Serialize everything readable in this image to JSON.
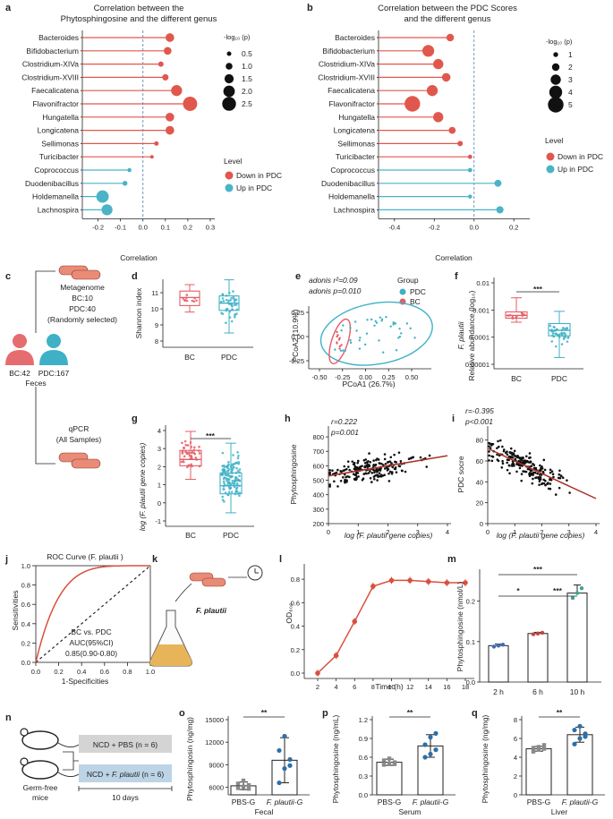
{
  "panels": {
    "a": {
      "label": "a",
      "title_line1": "Correlation between the",
      "title_line2": "Phytosphingosine and the different genus",
      "xlabel": "Correlation",
      "xticks": [
        "-0.2",
        "-0.1",
        "0.0",
        "0.1",
        "0.2",
        "0.3"
      ],
      "size_legend_title": "-log₁₀ (p)",
      "size_legend": [
        "0.5",
        "1.0",
        "1.5",
        "2.0",
        "2.5"
      ],
      "level_title": "Level",
      "level_down": "Down in PDC",
      "level_up": "Up in PDC"
    },
    "b": {
      "label": "b",
      "title_line1": "Correlation between the PDC Scores",
      "title_line2": "and the different genus",
      "xlabel": "Correlation",
      "xticks": [
        "-0.4",
        "-0.2",
        "0.0",
        "0.2"
      ],
      "size_legend_title": "-log₁₀ (p)",
      "size_legend": [
        "1",
        "2",
        "3",
        "4",
        "5"
      ],
      "level_title": "Level",
      "level_down": "Down in PDC",
      "level_up": "Up in PDC"
    },
    "c": {
      "label": "c",
      "metagenome": "Metagenome",
      "bc_count": "BC:10",
      "pdc_count": "PDC:40",
      "random": "(Randomly selected)",
      "bc_total": "BC:42",
      "pdc_total": "PDC:167",
      "feces": "Feces",
      "qpcr": "qPCR",
      "all_samples": "(All Samples)"
    },
    "d": {
      "label": "d",
      "ylabel": "Shannon index",
      "yticks": [
        "8",
        "9",
        "10",
        "11"
      ],
      "groups": [
        "BC",
        "PDC"
      ]
    },
    "e": {
      "label": "e",
      "adonis_r2": "adonis r²=0.09",
      "adonis_p": "adonis p=0.010",
      "group_title": "Group",
      "group_pdc": "PDC",
      "group_bc": "BC",
      "xlabel": "PCoA1 (26.7%)",
      "ylabel": "PCoA2 (10.9%)",
      "xticks": [
        "-0.50",
        "-0.25",
        "0.00",
        "0.25",
        "0.50"
      ],
      "yticks": [
        "-0.25",
        "0.00",
        "0.25"
      ]
    },
    "f": {
      "label": "f",
      "ylabel_species": "F. plautii",
      "ylabel": "Relative abundance (log₁₀)",
      "yticks": [
        "0.00001",
        "0.0001",
        "0.001",
        "0.01"
      ],
      "groups": [
        "BC",
        "PDC"
      ],
      "sig": "***"
    },
    "g": {
      "label": "g",
      "ylabel": "log (F. plautii gene copies)",
      "yticks": [
        "-1",
        "0",
        "1",
        "2",
        "3",
        "4"
      ],
      "groups": [
        "BC",
        "PDC"
      ],
      "sig": "***"
    },
    "h": {
      "label": "h",
      "r": "r=0.222",
      "p": "p=0.001",
      "ylabel": "Phytosphingosine",
      "xlabel": "log (F. plautii gene copies)",
      "yticks": [
        "200",
        "300",
        "400",
        "500",
        "600",
        "700",
        "800"
      ],
      "xticks": [
        "0",
        "1",
        "2",
        "3",
        "4"
      ]
    },
    "i": {
      "label": "i",
      "r": "r=-0.395",
      "p": "p<0.001",
      "ylabel": "PDC socre",
      "xlabel": "log (F. plautii gene copies)",
      "yticks": [
        "0",
        "20",
        "40",
        "60",
        "80"
      ],
      "xticks": [
        "0",
        "1",
        "2",
        "3",
        "4"
      ]
    },
    "j": {
      "label": "j",
      "title": "ROC Curve (F. plautii )",
      "ylabel": "Sensitivities",
      "xlabel": "1-Specificities",
      "ticks": [
        "0.0",
        "0.2",
        "0.4",
        "0.6",
        "0.8",
        "1.0"
      ],
      "note1": "BC vs. PDC",
      "note2": "AUC(95%CI)",
      "note3": "0.85(0.90-0.80)"
    },
    "k": {
      "label": "k",
      "species": "F. plautii"
    },
    "l": {
      "label": "l",
      "ylabel": "OD₆₀₀",
      "xlabel": "Time (h)",
      "yticks": [
        "0.0",
        "0.2",
        "0.4",
        "0.6",
        "0.8"
      ],
      "xticks": [
        "2",
        "4",
        "6",
        "8",
        "10",
        "12",
        "14",
        "16",
        "18"
      ]
    },
    "m": {
      "label": "m",
      "ylabel": "Phytosphingosine (nmol/L)",
      "yticks": [
        "0.0",
        "0.1",
        "0.2"
      ],
      "groups": [
        "2 h",
        "6 h",
        "10 h"
      ],
      "sig_top": "***",
      "sig_left": "*",
      "sig_right": "***"
    },
    "n": {
      "label": "n",
      "group1": "NCD + PBS (n = 6)",
      "group2_prefix": "NCD + ",
      "group2_species": "F. plautii",
      "group2_suffix": " (n = 6)",
      "mice_line1": "Germ-free",
      "mice_line2": "mice",
      "duration": "10 days"
    },
    "o": {
      "label": "o",
      "ylabel": "Phytosphingosin (ng/mg)",
      "yticks": [
        "6000",
        "9000",
        "12000",
        "15000"
      ],
      "groups": [
        "PBS-G",
        "F. plautii-G"
      ],
      "sig": "**",
      "footer": "Fecal"
    },
    "p": {
      "label": "p",
      "ylabel": "Phytosphingosine (ng/mL)",
      "yticks": [
        "0.0",
        "0.3",
        "0.6",
        "0.9",
        "1.2"
      ],
      "groups": [
        "PBS-G",
        "F. plautii-G"
      ],
      "sig": "**",
      "footer": "Serum"
    },
    "q": {
      "label": "q",
      "ylabel": "Phytosphingosine (ng/mg)",
      "yticks": [
        "0",
        "2",
        "4",
        "6",
        "8"
      ],
      "groups": [
        "PBS-G",
        "F. plautii-G"
      ],
      "sig": "**",
      "footer": "Liver"
    }
  },
  "chart_data": [
    {
      "panel": "a",
      "type": "lollipop",
      "title": "Correlation between the Phytosphingosine and the different genus",
      "xlabel": "Correlation",
      "xlim": [
        -0.27,
        0.32
      ],
      "categories": [
        "Bacteroides",
        "Bifidobacterium",
        "Clostridium-XIVa",
        "Clostridium-XVIII",
        "Faecalicatena",
        "Flavonifractor",
        "Hungatella",
        "Longicatena",
        "Sellimonas",
        "Turicibacter",
        "Coprococcus",
        "Duodenibacillus",
        "Holdemanella",
        "Lachnospira"
      ],
      "values": [
        0.12,
        0.11,
        0.08,
        0.1,
        0.15,
        0.21,
        0.12,
        0.12,
        0.06,
        0.04,
        -0.06,
        -0.08,
        -0.18,
        -0.16
      ],
      "neglog10p": [
        1.4,
        1.2,
        0.7,
        0.9,
        1.9,
        2.6,
        1.4,
        1.4,
        0.5,
        0.3,
        0.4,
        0.6,
        2.2,
        1.9
      ],
      "level": [
        "Down",
        "Down",
        "Down",
        "Down",
        "Down",
        "Down",
        "Down",
        "Down",
        "Down",
        "Down",
        "Up",
        "Up",
        "Up",
        "Up"
      ]
    },
    {
      "panel": "b",
      "type": "lollipop",
      "title": "Correlation between the PDC Scores and the different genus",
      "xlabel": "Correlation",
      "xlim": [
        -0.48,
        0.28
      ],
      "categories": [
        "Bacteroides",
        "Bifidobacterium",
        "Clostridium-XIVa",
        "Clostridium-XVIII",
        "Faecalicatena",
        "Flavonifractor",
        "Hungatella",
        "Longicatena",
        "Sellimonas",
        "Turicibacter",
        "Coprococcus",
        "Duodenibacillus",
        "Holdemanella",
        "Lachnospira"
      ],
      "values": [
        -0.12,
        -0.23,
        -0.18,
        -0.14,
        -0.21,
        -0.31,
        -0.18,
        -0.11,
        -0.07,
        -0.02,
        -0.02,
        0.12,
        -0.02,
        0.13
      ],
      "neglog10p": [
        2.0,
        3.6,
        3.0,
        2.4,
        3.3,
        5.0,
        3.0,
        1.8,
        1.2,
        0.8,
        0.8,
        1.8,
        0.7,
        1.9
      ],
      "level": [
        "Down",
        "Down",
        "Down",
        "Down",
        "Down",
        "Down",
        "Down",
        "Down",
        "Down",
        "Down",
        "Up",
        "Up",
        "Up",
        "Up"
      ]
    },
    {
      "panel": "l",
      "type": "line",
      "xlabel": "Time (h)",
      "ylabel": "OD600",
      "x": [
        2,
        4,
        6,
        8,
        10,
        12,
        14,
        16,
        18
      ],
      "y": [
        0.0,
        0.15,
        0.44,
        0.74,
        0.79,
        0.79,
        0.78,
        0.77,
        0.77
      ],
      "ylim": [
        0,
        0.9
      ]
    },
    {
      "panel": "m",
      "type": "bar",
      "ylabel": "Phytosphingosine (nmol/L)",
      "categories": [
        "2 h",
        "6 h",
        "10 h"
      ],
      "values": [
        0.09,
        0.12,
        0.22
      ],
      "ylim": [
        0,
        0.27
      ]
    },
    {
      "panel": "o",
      "type": "bar",
      "ylabel": "Phytosphingosin (ng/mg)",
      "categories": [
        "PBS-G",
        "F. plautii-G"
      ],
      "values": [
        6200,
        9600
      ],
      "errors": [
        500,
        3000
      ],
      "points": [
        [
          5900,
          6100,
          6300,
          6500,
          6900,
          5800
        ],
        [
          6600,
          8500,
          9700,
          10900,
          12800,
          8900
        ]
      ],
      "ylim": [
        5000,
        15000
      ]
    },
    {
      "panel": "p",
      "type": "bar",
      "ylabel": "Phytosphingosine (ng/mL)",
      "categories": [
        "PBS-G",
        "F. plautii-G"
      ],
      "values": [
        0.52,
        0.78
      ],
      "errors": [
        0.05,
        0.18
      ],
      "points": [
        [
          0.48,
          0.5,
          0.52,
          0.55,
          0.58,
          0.49
        ],
        [
          0.6,
          0.65,
          0.72,
          0.8,
          0.92,
          0.98
        ]
      ],
      "ylim": [
        0,
        1.2
      ]
    },
    {
      "panel": "q",
      "type": "bar",
      "ylabel": "Phytosphingosine (ng/mg)",
      "categories": [
        "PBS-G",
        "F. plautii-G"
      ],
      "values": [
        4.9,
        6.4
      ],
      "errors": [
        0.25,
        0.8
      ],
      "points": [
        [
          4.6,
          4.8,
          4.9,
          5.0,
          5.1,
          5.3
        ],
        [
          5.4,
          6.0,
          6.5,
          6.9,
          7.3,
          6.2
        ]
      ],
      "ylim": [
        0,
        8
      ]
    }
  ],
  "colors": {
    "down": "#e0584d",
    "up": "#4ab3c6",
    "bc": "#e45c64",
    "pdc": "#3fb1c6",
    "trend": "#a93228"
  }
}
